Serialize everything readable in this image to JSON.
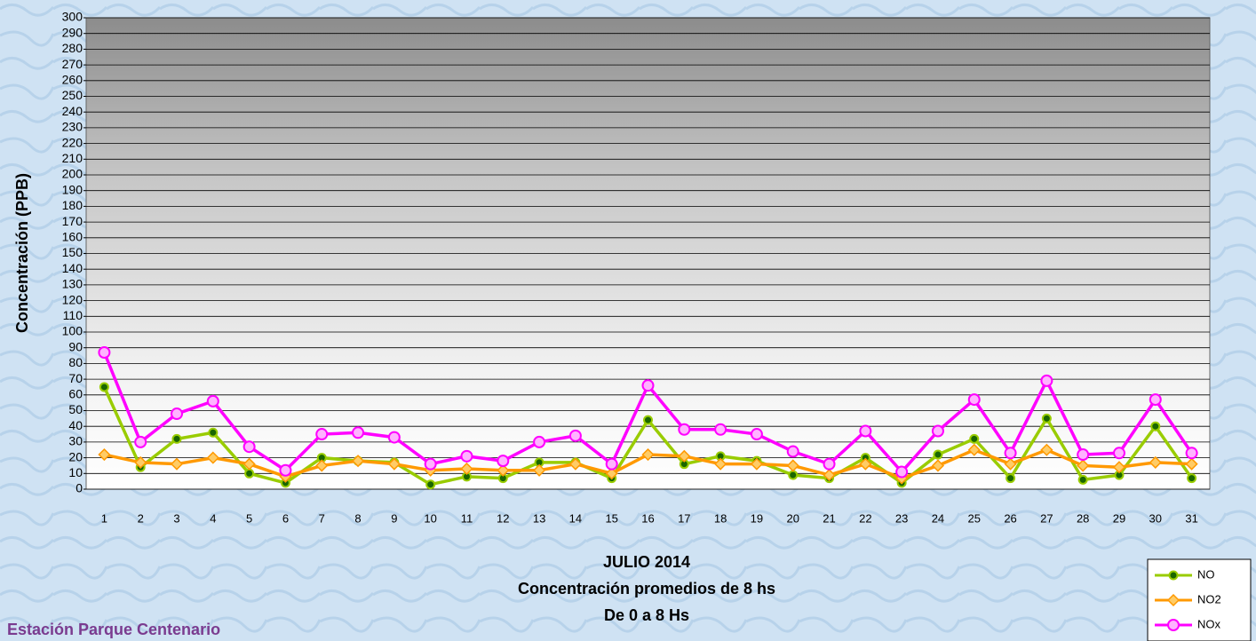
{
  "chart_data": {
    "type": "line",
    "title": [
      "JULIO 2014",
      "Concentración promedios de 8 hs",
      "De 0 a 8 Hs"
    ],
    "footer": "Estación Parque Centenario",
    "y_label": "Concentración  (PPB)",
    "categories": [
      "1",
      "2",
      "3",
      "4",
      "5",
      "6",
      "7",
      "8",
      "9",
      "10",
      "11",
      "12",
      "13",
      "14",
      "15",
      "16",
      "17",
      "18",
      "19",
      "20",
      "21",
      "22",
      "23",
      "24",
      "25",
      "26",
      "27",
      "28",
      "29",
      "30",
      "31"
    ],
    "series": [
      {
        "name": "NO",
        "color": "#99cc00",
        "values": [
          65,
          14,
          32,
          36,
          10,
          4,
          20,
          18,
          17,
          3,
          8,
          7,
          17,
          17,
          7,
          44,
          16,
          21,
          18,
          9,
          7,
          20,
          4,
          22,
          32,
          7,
          45,
          6,
          9,
          40,
          7
        ]
      },
      {
        "name": "NO2",
        "color": "#ff9900",
        "values": [
          22,
          17,
          16,
          20,
          16,
          8,
          15,
          18,
          16,
          12,
          13,
          12,
          12,
          16,
          10,
          22,
          21,
          16,
          16,
          15,
          9,
          16,
          7,
          15,
          25,
          16,
          25,
          15,
          14,
          17,
          16
        ]
      },
      {
        "name": "NOx",
        "color": "#ff00ff",
        "values": [
          87,
          30,
          48,
          56,
          27,
          12,
          35,
          36,
          33,
          16,
          21,
          18,
          30,
          34,
          16,
          66,
          38,
          38,
          35,
          24,
          16,
          37,
          11,
          37,
          57,
          23,
          69,
          22,
          23,
          57,
          23
        ]
      }
    ],
    "ylim": [
      0,
      300
    ],
    "yticks": [
      0,
      10,
      20,
      30,
      40,
      50,
      60,
      70,
      80,
      90,
      100,
      110,
      120,
      130,
      140,
      150,
      160,
      170,
      180,
      190,
      200,
      210,
      220,
      230,
      240,
      250,
      260,
      270,
      280,
      290,
      300
    ],
    "grid": true,
    "legend": "bottom-right"
  }
}
